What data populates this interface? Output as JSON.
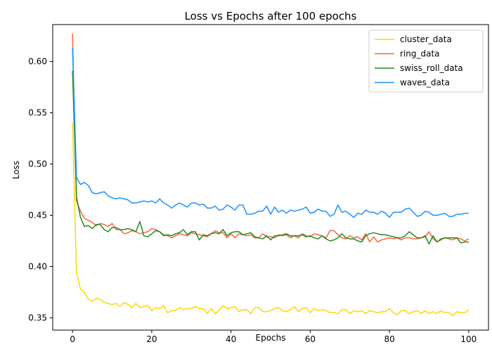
{
  "chart_data": {
    "type": "line",
    "title": "Loss vs Epochs after 100 epochs",
    "xlabel": "Epochs",
    "ylabel": "Loss",
    "xlim": [
      -5,
      105
    ],
    "ylim": [
      0.338,
      0.636
    ],
    "xticks": [
      0,
      20,
      40,
      60,
      80,
      100
    ],
    "yticks": [
      0.35,
      0.4,
      0.45,
      0.5,
      0.55,
      0.6
    ],
    "ytick_labels": [
      "0.35",
      "0.40",
      "0.45",
      "0.50",
      "0.55",
      "0.60"
    ],
    "grid": false,
    "legend_position": "top-right",
    "series": [
      {
        "name": "cluster_data",
        "color": "#FFD700",
        "values": [
          0.54,
          0.394,
          0.378,
          0.375,
          0.368,
          0.366,
          0.369,
          0.368,
          0.365,
          0.364,
          0.363,
          0.364,
          0.361,
          0.365,
          0.363,
          0.36,
          0.364,
          0.36,
          0.361,
          0.362,
          0.357,
          0.36,
          0.359,
          0.362,
          0.355,
          0.357,
          0.357,
          0.36,
          0.358,
          0.359,
          0.359,
          0.361,
          0.359,
          0.359,
          0.354,
          0.359,
          0.354,
          0.357,
          0.362,
          0.359,
          0.36,
          0.361,
          0.356,
          0.358,
          0.358,
          0.354,
          0.36,
          0.36,
          0.356,
          0.356,
          0.357,
          0.359,
          0.36,
          0.357,
          0.356,
          0.358,
          0.361,
          0.356,
          0.359,
          0.36,
          0.355,
          0.359,
          0.357,
          0.358,
          0.357,
          0.355,
          0.355,
          0.354,
          0.358,
          0.358,
          0.354,
          0.357,
          0.356,
          0.357,
          0.354,
          0.357,
          0.356,
          0.355,
          0.356,
          0.356,
          0.359,
          0.355,
          0.353,
          0.357,
          0.357,
          0.354,
          0.356,
          0.357,
          0.354,
          0.357,
          0.354,
          0.356,
          0.354,
          0.357,
          0.355,
          0.355,
          0.352,
          0.356,
          0.355,
          0.355,
          0.358
        ]
      },
      {
        "name": "ring_data",
        "color": "#F4683D",
        "values": [
          0.627,
          0.464,
          0.454,
          0.447,
          0.445,
          0.443,
          0.44,
          0.442,
          0.441,
          0.439,
          0.442,
          0.436,
          0.436,
          0.432,
          0.433,
          0.435,
          0.434,
          0.432,
          0.433,
          0.434,
          0.437,
          0.436,
          0.434,
          0.431,
          0.43,
          0.428,
          0.43,
          0.432,
          0.431,
          0.43,
          0.433,
          0.432,
          0.431,
          0.43,
          0.429,
          0.432,
          0.435,
          0.433,
          0.433,
          0.428,
          0.432,
          0.428,
          0.432,
          0.431,
          0.43,
          0.431,
          0.428,
          0.428,
          0.432,
          0.429,
          0.429,
          0.428,
          0.431,
          0.43,
          0.431,
          0.428,
          0.43,
          0.428,
          0.432,
          0.43,
          0.429,
          0.432,
          0.431,
          0.43,
          0.428,
          0.435,
          0.435,
          0.431,
          0.428,
          0.427,
          0.43,
          0.428,
          0.429,
          0.426,
          0.432,
          0.424,
          0.429,
          0.424,
          0.426,
          0.427,
          0.428,
          0.427,
          0.428,
          0.426,
          0.428,
          0.428,
          0.427,
          0.427,
          0.428,
          0.429,
          0.434,
          0.427,
          0.424,
          0.426,
          0.428,
          0.427,
          0.426,
          0.428,
          0.427,
          0.425,
          0.427
        ]
      },
      {
        "name": "swiss_roll_data",
        "color": "#228B22",
        "values": [
          0.591,
          0.468,
          0.448,
          0.439,
          0.44,
          0.437,
          0.441,
          0.441,
          0.436,
          0.434,
          0.438,
          0.438,
          0.436,
          0.436,
          0.437,
          0.436,
          0.434,
          0.444,
          0.43,
          0.429,
          0.432,
          0.435,
          0.434,
          0.43,
          0.431,
          0.43,
          0.432,
          0.433,
          0.436,
          0.431,
          0.434,
          0.434,
          0.426,
          0.431,
          0.43,
          0.432,
          0.433,
          0.432,
          0.436,
          0.43,
          0.433,
          0.434,
          0.434,
          0.431,
          0.432,
          0.433,
          0.429,
          0.428,
          0.427,
          0.43,
          0.426,
          0.43,
          0.43,
          0.431,
          0.432,
          0.43,
          0.43,
          0.43,
          0.431,
          0.429,
          0.43,
          0.428,
          0.427,
          0.43,
          0.427,
          0.425,
          0.426,
          0.428,
          0.432,
          0.428,
          0.427,
          0.427,
          0.425,
          0.424,
          0.43,
          0.432,
          0.433,
          0.432,
          0.431,
          0.431,
          0.43,
          0.429,
          0.428,
          0.428,
          0.43,
          0.434,
          0.431,
          0.428,
          0.428,
          0.43,
          0.422,
          0.43,
          0.424,
          0.427,
          0.428,
          0.428,
          0.428,
          0.428,
          0.423,
          0.424,
          0.424
        ]
      },
      {
        "name": "waves_data",
        "color": "#1E90FF",
        "values": [
          0.613,
          0.487,
          0.48,
          0.482,
          0.479,
          0.472,
          0.471,
          0.472,
          0.473,
          0.469,
          0.467,
          0.466,
          0.467,
          0.466,
          0.465,
          0.462,
          0.462,
          0.463,
          0.464,
          0.463,
          0.464,
          0.462,
          0.466,
          0.462,
          0.46,
          0.457,
          0.46,
          0.462,
          0.46,
          0.458,
          0.462,
          0.462,
          0.46,
          0.461,
          0.457,
          0.457,
          0.459,
          0.455,
          0.456,
          0.46,
          0.458,
          0.455,
          0.46,
          0.46,
          0.451,
          0.451,
          0.452,
          0.454,
          0.454,
          0.459,
          0.451,
          0.458,
          0.453,
          0.455,
          0.452,
          0.455,
          0.454,
          0.455,
          0.456,
          0.458,
          0.452,
          0.453,
          0.456,
          0.454,
          0.454,
          0.449,
          0.451,
          0.46,
          0.453,
          0.454,
          0.451,
          0.448,
          0.452,
          0.451,
          0.455,
          0.453,
          0.453,
          0.451,
          0.454,
          0.452,
          0.448,
          0.453,
          0.453,
          0.453,
          0.456,
          0.457,
          0.453,
          0.449,
          0.45,
          0.454,
          0.453,
          0.45,
          0.45,
          0.451,
          0.452,
          0.449,
          0.449,
          0.451,
          0.451,
          0.452,
          0.452
        ]
      }
    ]
  }
}
